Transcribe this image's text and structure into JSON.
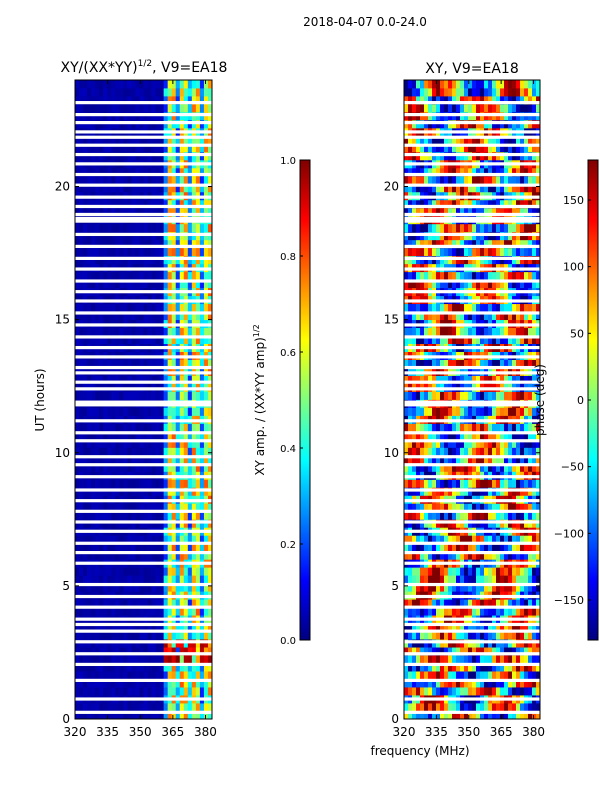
{
  "suptitle": "2018-04-07 0.0-24.0",
  "colors": {
    "jet": [
      "#00007f",
      "#0000ff",
      "#007fff",
      "#00ffff",
      "#7fff7f",
      "#ffff00",
      "#ff7f00",
      "#ff0000",
      "#7f0000"
    ]
  },
  "chart_data": [
    {
      "type": "heatmap",
      "id": "amp",
      "title_main": "XY/(XX*YY)",
      "title_exp": "1/2",
      "title_tail": ", V9=EA18",
      "ylabel": "UT (hours)",
      "xlabel": "",
      "xlim": [
        320,
        383
      ],
      "ylim": [
        0,
        24
      ],
      "xticks": [
        320,
        335,
        350,
        365,
        380
      ],
      "xtick_labels": [
        "320",
        "335",
        "350",
        "365",
        "380"
      ],
      "yticks": [
        0,
        5,
        10,
        15,
        20
      ],
      "ytick_labels": [
        "0",
        "5",
        "10",
        "15",
        "20"
      ],
      "band_start_mhz": 360,
      "colorbar": {
        "label_main": "XY amp. / (XX*YY amp)",
        "label_exp": "1/2",
        "range": [
          0,
          1
        ],
        "ticks": [
          0.0,
          0.2,
          0.4,
          0.6,
          0.8,
          1.0
        ],
        "tick_labels": [
          "0.0",
          "0.2",
          "0.4",
          "0.6",
          "0.8",
          "1.0"
        ]
      }
    },
    {
      "type": "heatmap",
      "id": "phase",
      "title": "XY, V9=EA18",
      "ylabel": "",
      "xlabel": "frequency (MHz)",
      "xlim": [
        320,
        383
      ],
      "ylim": [
        0,
        24
      ],
      "xticks": [
        320,
        335,
        350,
        365,
        380
      ],
      "xtick_labels": [
        "320",
        "335",
        "350",
        "365",
        "380"
      ],
      "yticks": [
        0,
        5,
        10,
        15,
        20
      ],
      "ytick_labels": [
        "0",
        "5",
        "10",
        "15",
        "20"
      ],
      "colorbar": {
        "label": "phase (deg)",
        "range": [
          -180,
          180
        ],
        "ticks": [
          -150,
          -100,
          -50,
          0,
          50,
          100,
          150
        ],
        "tick_labels": [
          "−150",
          "−100",
          "−50",
          "0",
          "50",
          "100",
          "150"
        ]
      }
    }
  ],
  "flagged_hours": [
    0.25,
    0.75,
    1.45,
    2.05,
    2.45,
    2.9,
    3.3,
    3.55,
    3.75,
    4.2,
    4.6,
    5.05,
    5.85,
    6.25,
    6.6,
    7.05,
    7.4,
    7.8,
    8.2,
    8.6,
    9.1,
    9.55,
    9.85,
    10.45,
    10.75,
    11.2,
    11.8,
    11.9,
    12.4,
    12.65,
    13.0,
    13.2,
    13.6,
    13.95,
    14.35,
    14.8,
    15.25,
    15.7,
    16.05,
    16.45,
    16.9,
    17.3,
    17.75,
    18.2,
    18.7,
    18.8,
    18.95,
    19.25,
    19.6,
    20.05,
    20.45,
    20.85,
    21.2,
    21.55,
    21.85,
    22.05,
    22.4,
    22.7,
    23.15
  ]
}
